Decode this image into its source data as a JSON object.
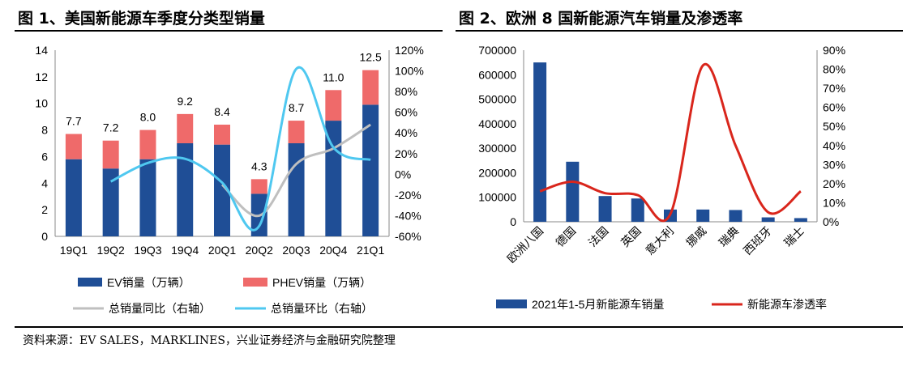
{
  "figure1": {
    "title": "图 1、美国新能源车季度分类型销量"
  },
  "figure2": {
    "title": "图 2、欧洲 8 国新能源汽车销量及渗透率"
  },
  "source": "资料来源：EV SALES，MARKLINES，兴业证券经济与金融研究院整理",
  "colors": {
    "navy": "#1F4E96",
    "salmon": "#EF6A6A",
    "gray": "#BFBFBF",
    "cyan": "#4FC8F0",
    "red": "#D9261C"
  },
  "chart_data": [
    {
      "type": "bar",
      "stacked": true,
      "categories": [
        "19Q1",
        "19Q2",
        "19Q3",
        "19Q4",
        "20Q1",
        "20Q2",
        "20Q3",
        "20Q4",
        "21Q1"
      ],
      "series": [
        {
          "name": "EV销量（万辆）",
          "type": "bar",
          "axis": "left",
          "values": [
            5.8,
            5.1,
            5.8,
            7.0,
            6.9,
            3.2,
            7.0,
            8.7,
            9.9
          ]
        },
        {
          "name": "PHEV销量（万辆）",
          "type": "bar",
          "axis": "left",
          "values": [
            1.9,
            2.1,
            2.2,
            2.2,
            1.5,
            1.1,
            1.7,
            2.3,
            2.6
          ]
        },
        {
          "name": "总销量同比（右轴）",
          "type": "line",
          "axis": "right",
          "values": [
            null,
            null,
            null,
            null,
            -10,
            -40,
            10,
            25,
            48
          ]
        },
        {
          "name": "总销量环比（右轴）",
          "type": "line",
          "axis": "right",
          "values": [
            null,
            -7,
            11,
            15,
            -8,
            -50,
            102,
            26,
            14
          ]
        }
      ],
      "totals": [
        "7.7",
        "7.2",
        "8.0",
        "9.2",
        "8.4",
        "4.3",
        "8.7",
        "11.0",
        "12.5"
      ],
      "ylim": [
        0,
        14
      ],
      "yticks": [
        "0",
        "2",
        "4",
        "6",
        "8",
        "10",
        "12",
        "14"
      ],
      "y2lim": [
        -60,
        120
      ],
      "y2ticks": [
        "-60%",
        "-40%",
        "-20%",
        "0%",
        "20%",
        "40%",
        "60%",
        "80%",
        "100%",
        "120%"
      ],
      "legend": [
        "EV销量（万辆）",
        "PHEV销量（万辆）",
        "总销量同比（右轴）",
        "总销量环比（右轴）"
      ],
      "legend_position": "bottom",
      "grid": false
    },
    {
      "type": "bar",
      "categories": [
        "欧洲八国",
        "德国",
        "法国",
        "英国",
        "意大利",
        "挪威",
        "瑞典",
        "西班牙",
        "瑞士"
      ],
      "series": [
        {
          "name": "2021年1-5月新能源车销量",
          "type": "bar",
          "axis": "left",
          "values": [
            650000,
            245000,
            105000,
            95000,
            50000,
            50000,
            48000,
            18000,
            15000
          ]
        },
        {
          "name": "新能源车渗透率",
          "type": "line",
          "axis": "right",
          "values": [
            16,
            21,
            15,
            14,
            4,
            82,
            40,
            5,
            16
          ]
        }
      ],
      "ylim": [
        0,
        700000
      ],
      "yticks": [
        "0",
        "100000",
        "200000",
        "300000",
        "400000",
        "500000",
        "600000",
        "700000"
      ],
      "y2lim": [
        0,
        90
      ],
      "y2ticks": [
        "0%",
        "10%",
        "20%",
        "30%",
        "40%",
        "50%",
        "60%",
        "70%",
        "80%",
        "90%"
      ],
      "legend": [
        "2021年1-5月新能源车销量",
        "新能源车渗透率"
      ],
      "legend_position": "bottom",
      "grid": false
    }
  ]
}
